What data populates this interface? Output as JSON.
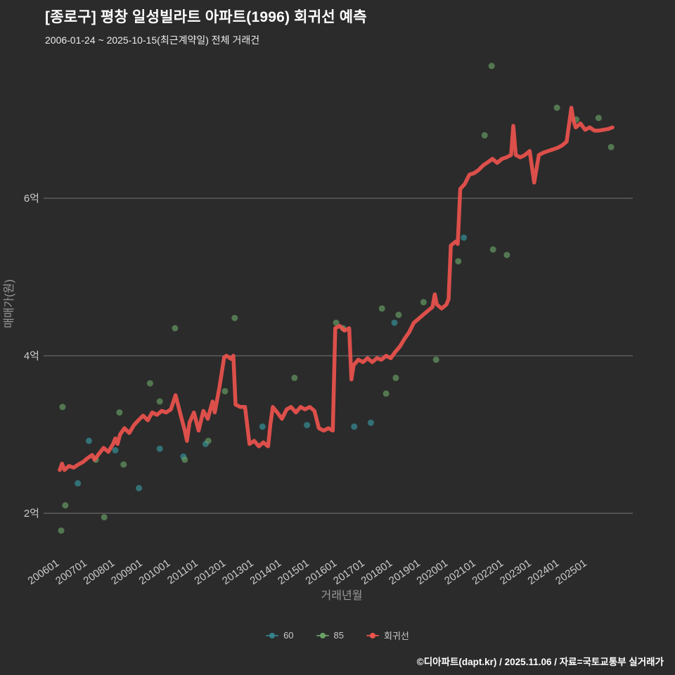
{
  "header": {
    "title": "[종로구] 평창 일성빌라트 아파트(1996) 회귀선 예측",
    "subtitle": "2006-01-24 ~ 2025-10-15(최근계약일) 전체 거래건"
  },
  "footer": {
    "text": "©디아파트(dapt.kr) / 2025.11.06 / 자료=국토교통부 실거래가"
  },
  "colors": {
    "background": "#2b2b2b",
    "grid": "#757575",
    "tick_label": "#cccccc",
    "axis_title": "#999999",
    "title_text": "#ffffff",
    "series_60": "#34838a",
    "series_85": "#69a266",
    "regression": "#f0534e"
  },
  "chart_data": {
    "type": "scatter",
    "title": "[종로구] 평창 일성빌라트 아파트(1996) 회귀선 예측",
    "subtitle": "2006-01-24 ~ 2025-10-15(최근계약일) 전체 거래건",
    "xlabel": "거래년월",
    "ylabel": "매매가(원)",
    "unit": "억원",
    "grid": "horizontal-only",
    "legend_position": "bottom-center",
    "xlim": [
      2005.5,
      2026.3
    ],
    "ylim": [
      1.4,
      7.9
    ],
    "x_ticks": [
      "200601",
      "200701",
      "200801",
      "200901",
      "201001",
      "201101",
      "201201",
      "201301",
      "201401",
      "201501",
      "201601",
      "201701",
      "201801",
      "201901",
      "202001",
      "202101",
      "202201",
      "202301",
      "202401",
      "202501"
    ],
    "y_ticks": [
      {
        "label": "2억",
        "value": 2
      },
      {
        "label": "4억",
        "value": 4
      },
      {
        "label": "6억",
        "value": 6
      }
    ],
    "series": [
      {
        "name": "60",
        "type": "scatter",
        "color": "#34838a",
        "opacity": 0.8,
        "points": [
          [
            2006.65,
            2.38
          ],
          [
            2007.05,
            2.92
          ],
          [
            2008.0,
            2.8
          ],
          [
            2008.85,
            2.32
          ],
          [
            2009.6,
            2.82
          ],
          [
            2010.45,
            2.72
          ],
          [
            2011.25,
            2.88
          ],
          [
            2013.3,
            3.1
          ],
          [
            2014.9,
            3.12
          ],
          [
            2016.6,
            3.1
          ],
          [
            2017.2,
            3.15
          ],
          [
            2018.05,
            4.42
          ],
          [
            2020.55,
            5.5
          ]
        ]
      },
      {
        "name": "85",
        "type": "scatter",
        "color": "#69a266",
        "opacity": 0.65,
        "points": [
          [
            2006.05,
            1.78
          ],
          [
            2006.1,
            3.35
          ],
          [
            2006.2,
            2.1
          ],
          [
            2007.3,
            2.68
          ],
          [
            2007.6,
            1.95
          ],
          [
            2008.15,
            3.28
          ],
          [
            2008.3,
            2.62
          ],
          [
            2009.25,
            3.65
          ],
          [
            2009.6,
            3.42
          ],
          [
            2010.15,
            4.35
          ],
          [
            2010.5,
            2.68
          ],
          [
            2011.35,
            2.92
          ],
          [
            2011.95,
            3.55
          ],
          [
            2012.3,
            4.48
          ],
          [
            2014.45,
            3.72
          ],
          [
            2015.95,
            4.42
          ],
          [
            2016.2,
            4.35
          ],
          [
            2017.6,
            4.6
          ],
          [
            2017.75,
            3.52
          ],
          [
            2018.1,
            3.72
          ],
          [
            2018.2,
            4.52
          ],
          [
            2019.1,
            4.68
          ],
          [
            2019.55,
            3.95
          ],
          [
            2020.35,
            5.2
          ],
          [
            2021.3,
            6.8
          ],
          [
            2021.55,
            7.68
          ],
          [
            2021.6,
            5.35
          ],
          [
            2022.1,
            5.28
          ],
          [
            2023.9,
            7.15
          ],
          [
            2024.6,
            7.0
          ],
          [
            2025.4,
            7.02
          ],
          [
            2025.85,
            6.65
          ]
        ]
      },
      {
        "name": "회귀선",
        "type": "line",
        "color": "#f0534e",
        "opacity": 0.9,
        "points": [
          [
            2006.0,
            2.55
          ],
          [
            2006.08,
            2.63
          ],
          [
            2006.17,
            2.55
          ],
          [
            2006.33,
            2.6
          ],
          [
            2006.5,
            2.58
          ],
          [
            2006.67,
            2.62
          ],
          [
            2006.83,
            2.65
          ],
          [
            2007.0,
            2.7
          ],
          [
            2007.17,
            2.74
          ],
          [
            2007.25,
            2.68
          ],
          [
            2007.42,
            2.76
          ],
          [
            2007.58,
            2.83
          ],
          [
            2007.75,
            2.78
          ],
          [
            2007.92,
            2.88
          ],
          [
            2008.0,
            2.95
          ],
          [
            2008.08,
            2.88
          ],
          [
            2008.17,
            3.0
          ],
          [
            2008.33,
            3.08
          ],
          [
            2008.5,
            3.02
          ],
          [
            2008.67,
            3.12
          ],
          [
            2008.83,
            3.18
          ],
          [
            2009.0,
            3.24
          ],
          [
            2009.17,
            3.18
          ],
          [
            2009.33,
            3.28
          ],
          [
            2009.5,
            3.25
          ],
          [
            2009.67,
            3.3
          ],
          [
            2009.83,
            3.28
          ],
          [
            2010.0,
            3.32
          ],
          [
            2010.17,
            3.5
          ],
          [
            2010.33,
            3.28
          ],
          [
            2010.5,
            3.05
          ],
          [
            2010.58,
            2.92
          ],
          [
            2010.67,
            3.15
          ],
          [
            2010.83,
            3.28
          ],
          [
            2011.0,
            3.05
          ],
          [
            2011.17,
            3.3
          ],
          [
            2011.33,
            3.2
          ],
          [
            2011.5,
            3.42
          ],
          [
            2011.58,
            3.28
          ],
          [
            2011.75,
            3.6
          ],
          [
            2011.92,
            3.98
          ],
          [
            2012.0,
            4.0
          ],
          [
            2012.17,
            3.96
          ],
          [
            2012.25,
            4.0
          ],
          [
            2012.33,
            3.38
          ],
          [
            2012.5,
            3.35
          ],
          [
            2012.67,
            3.35
          ],
          [
            2012.83,
            2.88
          ],
          [
            2013.0,
            2.92
          ],
          [
            2013.17,
            2.85
          ],
          [
            2013.33,
            2.9
          ],
          [
            2013.5,
            2.85
          ],
          [
            2013.58,
            3.12
          ],
          [
            2013.67,
            3.35
          ],
          [
            2013.83,
            3.28
          ],
          [
            2014.0,
            3.2
          ],
          [
            2014.17,
            3.32
          ],
          [
            2014.33,
            3.35
          ],
          [
            2014.5,
            3.28
          ],
          [
            2014.67,
            3.35
          ],
          [
            2014.83,
            3.32
          ],
          [
            2015.0,
            3.35
          ],
          [
            2015.17,
            3.3
          ],
          [
            2015.33,
            3.08
          ],
          [
            2015.5,
            3.05
          ],
          [
            2015.67,
            3.08
          ],
          [
            2015.83,
            3.05
          ],
          [
            2015.92,
            4.35
          ],
          [
            2016.08,
            4.38
          ],
          [
            2016.25,
            4.32
          ],
          [
            2016.42,
            4.35
          ],
          [
            2016.5,
            3.7
          ],
          [
            2016.58,
            3.88
          ],
          [
            2016.75,
            3.95
          ],
          [
            2016.92,
            3.92
          ],
          [
            2017.08,
            3.97
          ],
          [
            2017.25,
            3.92
          ],
          [
            2017.42,
            3.97
          ],
          [
            2017.58,
            3.95
          ],
          [
            2017.75,
            4.0
          ],
          [
            2017.92,
            3.97
          ],
          [
            2018.08,
            4.05
          ],
          [
            2018.25,
            4.12
          ],
          [
            2018.42,
            4.22
          ],
          [
            2018.58,
            4.3
          ],
          [
            2018.75,
            4.42
          ],
          [
            2018.92,
            4.47
          ],
          [
            2019.08,
            4.52
          ],
          [
            2019.25,
            4.57
          ],
          [
            2019.42,
            4.62
          ],
          [
            2019.5,
            4.78
          ],
          [
            2019.58,
            4.65
          ],
          [
            2019.75,
            4.6
          ],
          [
            2019.92,
            4.65
          ],
          [
            2020.0,
            4.72
          ],
          [
            2020.08,
            5.4
          ],
          [
            2020.25,
            5.45
          ],
          [
            2020.33,
            5.42
          ],
          [
            2020.42,
            6.12
          ],
          [
            2020.58,
            6.18
          ],
          [
            2020.75,
            6.3
          ],
          [
            2020.92,
            6.32
          ],
          [
            2021.08,
            6.36
          ],
          [
            2021.25,
            6.42
          ],
          [
            2021.42,
            6.46
          ],
          [
            2021.58,
            6.5
          ],
          [
            2021.75,
            6.45
          ],
          [
            2021.92,
            6.5
          ],
          [
            2022.08,
            6.52
          ],
          [
            2022.25,
            6.55
          ],
          [
            2022.33,
            6.92
          ],
          [
            2022.42,
            6.55
          ],
          [
            2022.58,
            6.52
          ],
          [
            2022.75,
            6.55
          ],
          [
            2022.92,
            6.6
          ],
          [
            2023.08,
            6.2
          ],
          [
            2023.25,
            6.55
          ],
          [
            2023.42,
            6.58
          ],
          [
            2023.58,
            6.6
          ],
          [
            2023.75,
            6.62
          ],
          [
            2023.92,
            6.64
          ],
          [
            2024.08,
            6.67
          ],
          [
            2024.25,
            6.72
          ],
          [
            2024.42,
            7.15
          ],
          [
            2024.5,
            6.98
          ],
          [
            2024.58,
            6.9
          ],
          [
            2024.75,
            6.95
          ],
          [
            2024.92,
            6.87
          ],
          [
            2025.08,
            6.9
          ],
          [
            2025.25,
            6.86
          ],
          [
            2025.42,
            6.86
          ],
          [
            2025.58,
            6.87
          ],
          [
            2025.75,
            6.88
          ],
          [
            2025.9,
            6.9
          ]
        ]
      }
    ]
  }
}
